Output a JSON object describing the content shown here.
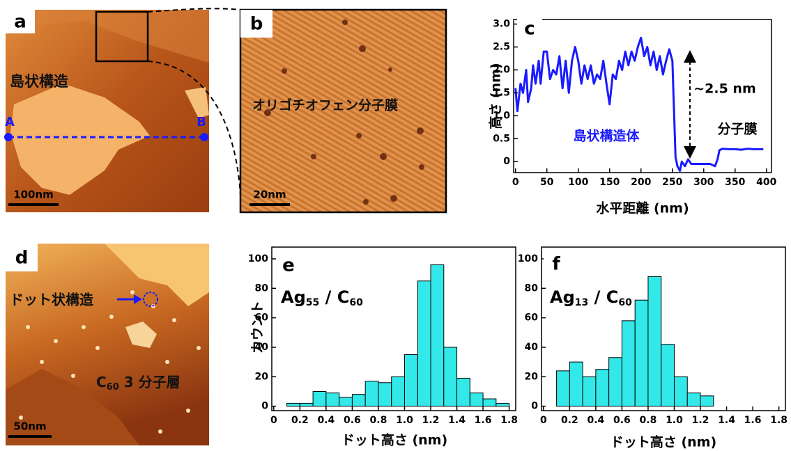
{
  "images": [
    {
      "letter": "a",
      "label": "島状構造",
      "point_a": "A",
      "point_b": "B",
      "scale": "100nm"
    },
    {
      "letter": "b",
      "label": "オリゴチオフェン分子膜",
      "scale": "20nm"
    },
    {
      "letter": "d",
      "label": "ドット状構造",
      "layer_parts": [
        "C",
        "60",
        " 3 分子層"
      ],
      "scale": "50nm"
    }
  ],
  "chart_data": [
    {
      "type": "line",
      "letter": "c",
      "x_label": "水平距離 (nm)",
      "y_label": "高さ (nm)",
      "x": [
        0,
        3,
        8,
        12,
        17,
        20,
        25,
        28,
        32,
        37,
        40,
        45,
        50,
        55,
        60,
        65,
        70,
        75,
        80,
        85,
        90,
        95,
        100,
        105,
        110,
        115,
        120,
        125,
        130,
        135,
        140,
        145,
        150,
        155,
        160,
        165,
        170,
        175,
        180,
        185,
        190,
        195,
        200,
        205,
        210,
        215,
        220,
        225,
        230,
        235,
        240,
        245,
        250,
        255,
        258,
        262,
        265,
        270,
        275,
        280,
        290,
        300,
        310,
        318,
        322,
        325,
        330,
        340,
        350,
        360,
        370,
        380,
        390,
        395
      ],
      "values": [
        1.6,
        1.1,
        1.7,
        1.5,
        2.0,
        1.3,
        1.6,
        2.1,
        1.7,
        2.2,
        1.7,
        2.4,
        2.4,
        1.8,
        2.0,
        1.9,
        2.3,
        1.6,
        2.2,
        1.5,
        2.2,
        2.5,
        2.2,
        1.7,
        2.1,
        1.8,
        2.1,
        1.7,
        1.9,
        1.8,
        2.2,
        1.7,
        1.25,
        1.9,
        1.8,
        2.2,
        2.0,
        2.4,
        2.1,
        2.4,
        2.2,
        2.5,
        2.7,
        2.3,
        2.5,
        2.1,
        2.4,
        2.0,
        2.3,
        1.9,
        2.2,
        2.45,
        2.2,
        0.1,
        -0.1,
        -0.2,
        0.0,
        -0.1,
        0.05,
        -0.05,
        -0.05,
        -0.05,
        -0.05,
        -0.1,
        0.05,
        0.25,
        0.28,
        0.27,
        0.27,
        0.26,
        0.28,
        0.27,
        0.27,
        0.27
      ],
      "color": "#1a1aff",
      "xlim": [
        -3,
        408
      ],
      "xticks": [
        0,
        50,
        100,
        150,
        200,
        250,
        300,
        350,
        400
      ],
      "ylim": [
        -0.24,
        3.1
      ],
      "yticks": [
        0,
        0.5,
        {
          "value": 1,
          "label": "1.0"
        },
        1.5,
        {
          "value": 2,
          "label": "2.0"
        },
        2.5,
        {
          "value": 3,
          "label": "3.0"
        }
      ],
      "annotations": [
        {
          "text": "~2.5 nm",
          "color": "#000000"
        },
        {
          "text": "島状構造体",
          "color": "#1a1aff"
        },
        {
          "text": "分子膜",
          "color": "#000000"
        }
      ]
    },
    {
      "type": "histogram",
      "letter": "e",
      "x_label": "ドット高さ (nm)",
      "y_label": "カウント",
      "label_parts": [
        "Ag",
        "55",
        " / C",
        "60"
      ],
      "bins": [
        0.1,
        0.2,
        0.3,
        0.4,
        0.5,
        0.6,
        0.7,
        0.8,
        0.9,
        1.0,
        1.1,
        1.2,
        1.3,
        1.4,
        1.5,
        1.6,
        1.7,
        1.8
      ],
      "values": [
        2,
        2,
        10,
        9,
        6,
        8,
        17,
        16,
        20,
        35,
        85,
        96,
        40,
        19,
        9,
        5,
        2
      ],
      "color": "#33e8e8",
      "xlim": [
        -0.015,
        1.85
      ],
      "xticks": [
        0,
        0.2,
        0.4,
        0.6,
        0.8,
        {
          "value": 1,
          "label": "1.0"
        },
        1.2,
        1.4,
        1.6,
        1.8
      ],
      "ylim": [
        -3,
        108
      ],
      "yticks": [
        0,
        20,
        40,
        60,
        80,
        100
      ]
    },
    {
      "type": "histogram",
      "letter": "f",
      "x_label": "ドット高さ (nm)",
      "label_parts": [
        "Ag",
        "13",
        " / C",
        "60"
      ],
      "bins": [
        0.1,
        0.2,
        0.3,
        0.4,
        0.5,
        0.6,
        0.7,
        0.8,
        0.9,
        1.0,
        1.1,
        1.2,
        1.3
      ],
      "values": [
        24,
        30,
        20,
        25,
        33,
        58,
        72,
        88,
        42,
        20,
        9,
        7
      ],
      "color": "#33e8e8",
      "xlim": [
        -0.015,
        1.85
      ],
      "xticks": [
        0,
        0.2,
        0.4,
        0.6,
        0.8,
        {
          "value": 1,
          "label": "1.0"
        },
        1.2,
        1.4,
        1.6,
        1.8
      ],
      "ylim": [
        -3,
        108
      ],
      "yticks": [
        0,
        20,
        40,
        60,
        80,
        100
      ]
    }
  ]
}
